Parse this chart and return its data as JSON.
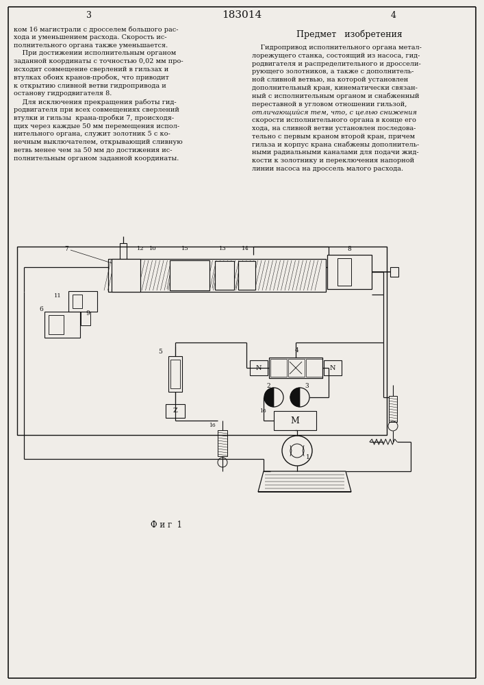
{
  "title": "183014",
  "page_left": "3",
  "page_right": "4",
  "section_title": "Предмет   изобретения",
  "left_lines": [
    "ком 16 магистрали с дросселем большого рас-",
    "хода и уменьшением расхода. Скорость ис-",
    "полнительного органа также уменьшается.",
    "    При достижении исполнительным органом",
    "заданной координаты с точностью 0,02 мм про-",
    "исходит совмещение сверлений в гильзах и",
    "втулках обоих кранов-пробок, что приводит",
    "к открытию сливной ветви гидропривода и",
    "останову гидродвигателя 8.",
    "    Для исключения прекращения работы гид-",
    "родвигателя при всех совмещениях сверлений",
    "втулки и гильзы  крана-пробки 7, происходя-",
    "щих через каждые 50 мм перемещения испол-",
    "нительного органа, служит золотник 5 с ко-",
    "нечным выключателем, открывающий сливную",
    "ветвь менее чем за 50 мм до достижения ис-",
    "полнительным органом заданной координаты."
  ],
  "right_lines": [
    "    Гидропривод исполнительного органа метал-",
    "лорежущего станка, состоящий из насоса, гид-",
    "родвигателя и распределительного и дроссели-",
    "рующего золотников, а также с дополнитель-",
    "ной сливной ветвью, на которой установлен",
    "дополнительный кран, кинематически связан-",
    "ный с исполнительным органом и снабженный",
    "переставной в угловом отношении гильзой,",
    "отличающийся тем, что, с целью снижения",
    "скорости исполнительного органа в конце его",
    "хода, на сливной ветви установлен последова-",
    "тельно с первым краном второй кран, причем",
    "гильза и корпус крана снабжены дополнитель-",
    "ными радиальными каналами для подачи жид-",
    "кости к золотнику и переключения напорной",
    "линии насоса на дроссель малого расхода."
  ],
  "bg_color": "#f0ede8",
  "line_color": "#111111",
  "text_color": "#111111"
}
